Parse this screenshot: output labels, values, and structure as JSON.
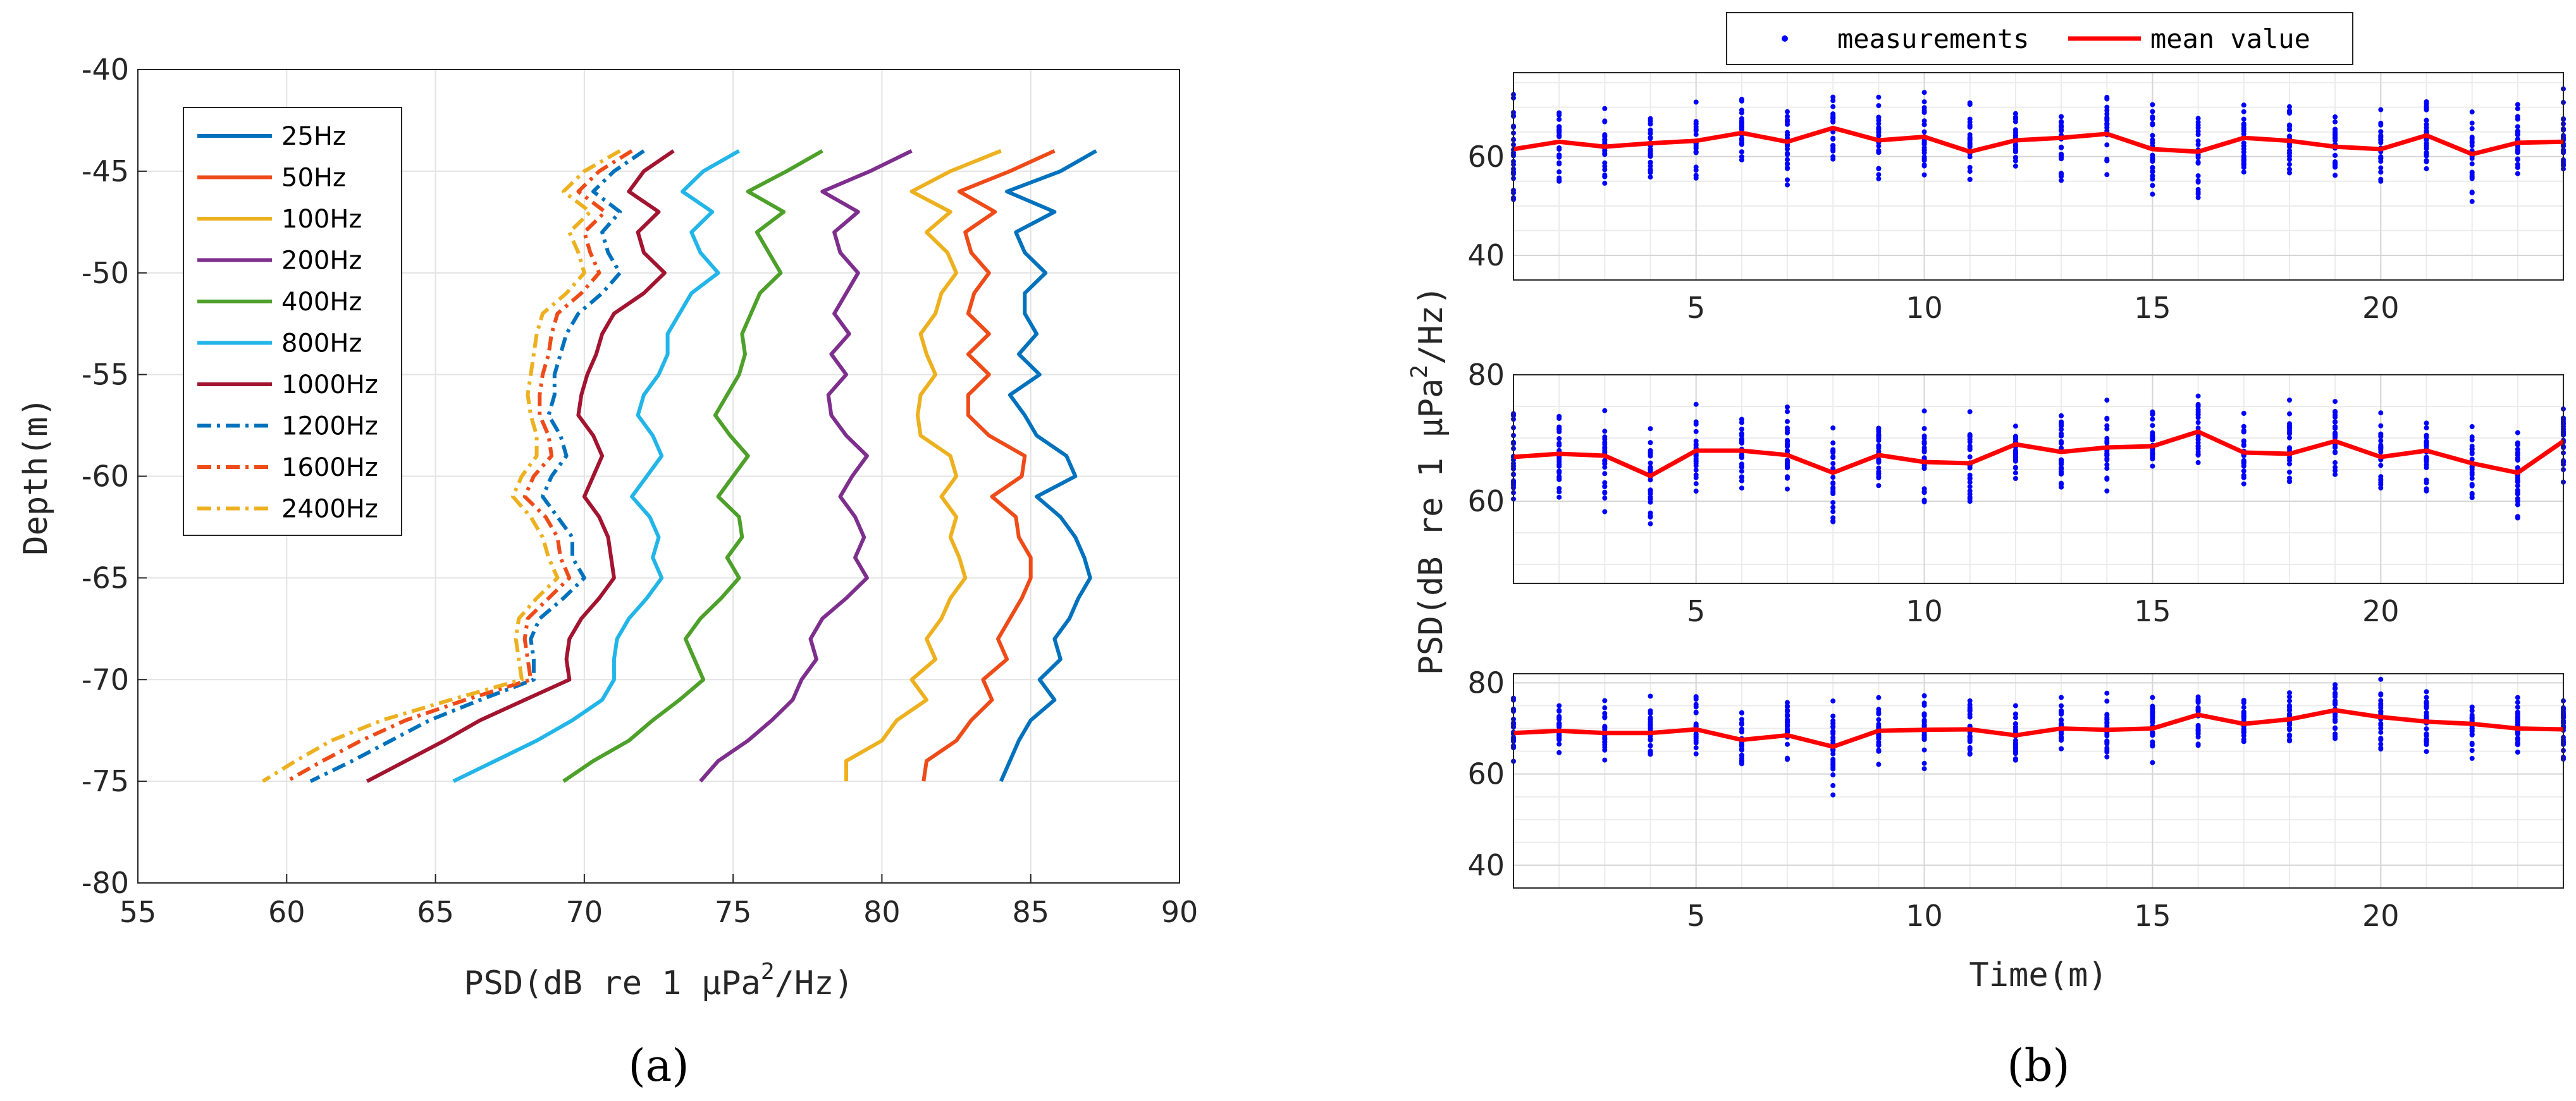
{
  "chart_data": [
    {
      "id": "a",
      "type": "line",
      "caption": "(a)",
      "xlabel": "PSD(dB re 1 μPa",
      "xlabel_sup": "2",
      "xlabel_tail": "/Hz)",
      "ylabel": "Depth(m)",
      "xlim": [
        55,
        90
      ],
      "ylim": [
        -80,
        -40
      ],
      "xticks": [
        55,
        60,
        65,
        70,
        75,
        80,
        85,
        90
      ],
      "yticks": [
        -80,
        -75,
        -70,
        -65,
        -60,
        -55,
        -50,
        -45,
        -40
      ],
      "grid": true,
      "legend_position": "top-left",
      "depths": [
        -44,
        -45,
        -46,
        -47,
        -48,
        -49,
        -50,
        -51,
        -52,
        -53,
        -54,
        -55,
        -56,
        -57,
        -58,
        -59,
        -60,
        -61,
        -62,
        -63,
        -64,
        -65,
        -66,
        -67,
        -68,
        -69,
        -70,
        -71,
        -72,
        -73,
        -74,
        -75
      ],
      "series": [
        {
          "name": "25Hz",
          "color": "#0072BD",
          "dash": "solid",
          "values": [
            87.2,
            86.0,
            84.2,
            85.8,
            84.5,
            84.8,
            85.5,
            84.8,
            84.8,
            85.2,
            84.6,
            85.3,
            84.3,
            84.8,
            85.2,
            86.2,
            86.5,
            85.2,
            86.0,
            86.5,
            86.8,
            87.0,
            86.6,
            86.3,
            85.8,
            86.0,
            85.3,
            85.8,
            85.0,
            84.6,
            84.3,
            84.0
          ]
        },
        {
          "name": "50Hz",
          "color": "#EE4B19",
          "dash": "solid",
          "values": [
            85.8,
            84.3,
            82.6,
            83.8,
            82.8,
            83.0,
            83.6,
            83.1,
            82.9,
            83.6,
            82.9,
            83.6,
            82.9,
            82.9,
            83.6,
            84.8,
            84.7,
            83.7,
            84.5,
            84.6,
            85.0,
            85.0,
            84.7,
            84.3,
            83.9,
            84.2,
            83.4,
            83.7,
            83.0,
            82.5,
            81.5,
            81.4
          ]
        },
        {
          "name": "100Hz",
          "color": "#EDB120",
          "dash": "solid",
          "values": [
            84.0,
            82.3,
            81.0,
            82.3,
            81.5,
            82.2,
            82.5,
            82.0,
            81.8,
            81.3,
            81.5,
            81.8,
            81.3,
            81.2,
            81.3,
            82.3,
            82.5,
            82.0,
            82.5,
            82.3,
            82.6,
            82.8,
            82.3,
            82.0,
            81.5,
            81.8,
            81.0,
            81.5,
            80.5,
            80.0,
            78.8,
            78.8
          ]
        },
        {
          "name": "200Hz",
          "color": "#7E2F8E",
          "dash": "solid",
          "values": [
            81.0,
            79.6,
            78.0,
            79.2,
            78.4,
            78.6,
            79.2,
            78.8,
            78.4,
            78.9,
            78.3,
            78.8,
            78.2,
            78.3,
            78.8,
            79.5,
            79.0,
            78.6,
            79.1,
            79.4,
            79.1,
            79.5,
            78.8,
            78.0,
            77.6,
            77.8,
            77.3,
            77.0,
            76.3,
            75.5,
            74.5,
            73.9
          ]
        },
        {
          "name": "400Hz",
          "color": "#4DA02A",
          "dash": "solid",
          "values": [
            78.0,
            76.8,
            75.5,
            76.7,
            75.8,
            76.2,
            76.6,
            75.9,
            75.6,
            75.3,
            75.4,
            75.2,
            74.8,
            74.4,
            74.9,
            75.5,
            75.0,
            74.5,
            75.2,
            75.3,
            74.8,
            75.2,
            74.6,
            73.9,
            73.4,
            73.7,
            74.0,
            73.2,
            72.3,
            71.5,
            70.3,
            69.3
          ]
        },
        {
          "name": "800Hz",
          "color": "#22B5E8",
          "dash": "solid",
          "values": [
            75.2,
            74.0,
            73.3,
            74.3,
            73.6,
            73.9,
            74.5,
            73.6,
            73.2,
            72.8,
            72.8,
            72.5,
            72.0,
            71.8,
            72.3,
            72.6,
            72.1,
            71.6,
            72.2,
            72.5,
            72.3,
            72.6,
            72.1,
            71.5,
            71.1,
            71.0,
            71.0,
            70.6,
            69.6,
            68.4,
            67.0,
            65.6
          ]
        },
        {
          "name": "1000Hz",
          "color": "#A2142F",
          "dash": "solid",
          "values": [
            73.0,
            72.0,
            71.5,
            72.5,
            71.8,
            72.0,
            72.7,
            72.0,
            71.0,
            70.6,
            70.4,
            70.1,
            69.9,
            69.8,
            70.3,
            70.6,
            70.3,
            70.0,
            70.5,
            70.8,
            70.9,
            71.0,
            70.5,
            69.9,
            69.5,
            69.4,
            69.5,
            68.0,
            66.5,
            65.3,
            64.0,
            62.7
          ]
        },
        {
          "name": "1200Hz",
          "color": "#0072BD",
          "dash": "dashdot",
          "values": [
            72.0,
            71.0,
            70.3,
            71.2,
            70.6,
            70.8,
            71.2,
            70.6,
            69.8,
            69.4,
            69.2,
            69.0,
            69.0,
            68.8,
            69.2,
            69.4,
            68.9,
            68.6,
            69.1,
            69.6,
            69.6,
            70.0,
            69.3,
            68.5,
            68.2,
            68.3,
            68.3,
            66.5,
            64.8,
            63.5,
            62.2,
            60.8
          ]
        },
        {
          "name": "1600Hz",
          "color": "#EE4B19",
          "dash": "dashdot",
          "values": [
            71.6,
            70.5,
            69.8,
            70.7,
            70.0,
            70.2,
            70.5,
            69.9,
            69.1,
            68.9,
            68.8,
            68.6,
            68.5,
            68.5,
            68.8,
            68.9,
            68.3,
            68.0,
            68.7,
            69.1,
            69.2,
            69.5,
            68.8,
            68.1,
            68.0,
            68.1,
            68.2,
            66.0,
            64.0,
            62.5,
            61.2,
            60.0
          ]
        },
        {
          "name": "2400Hz",
          "color": "#EDB120",
          "dash": "dashdot",
          "values": [
            71.2,
            70.0,
            69.3,
            70.2,
            69.5,
            69.8,
            70.0,
            69.4,
            68.6,
            68.4,
            68.3,
            68.2,
            68.1,
            68.2,
            68.4,
            68.4,
            67.9,
            67.6,
            68.2,
            68.6,
            68.8,
            69.1,
            68.4,
            67.8,
            67.7,
            67.8,
            67.9,
            65.5,
            63.2,
            61.5,
            60.3,
            59.2
          ]
        }
      ]
    },
    {
      "id": "b",
      "type": "scatter",
      "caption": "(b)",
      "xlabel": "Time(m)",
      "ylabel": "PSD(dB re 1 μPa",
      "ylabel_sup": "2",
      "ylabel_tail": "/Hz)",
      "legend": {
        "entries": [
          "measurements",
          "mean value"
        ],
        "position": "top"
      },
      "measurement_color": "#0000FF",
      "mean_color": "#FF0000",
      "grid": true,
      "panels": [
        {
          "xlim": [
            1,
            24
          ],
          "ylim": [
            35,
            77
          ],
          "xticks": [
            5,
            10,
            15,
            20
          ],
          "yticks": [
            40,
            60
          ],
          "x": [
            1,
            2,
            3,
            4,
            5,
            6,
            7,
            8,
            9,
            10,
            11,
            12,
            13,
            14,
            15,
            16,
            17,
            18,
            19,
            20,
            21,
            22,
            23,
            24
          ],
          "mean": [
            61.5,
            63.0,
            62.0,
            62.7,
            63.2,
            64.8,
            63.0,
            65.8,
            63.3,
            64.0,
            61.0,
            63.3,
            63.8,
            64.6,
            61.5,
            61.0,
            63.8,
            63.2,
            62.0,
            61.5,
            64.3,
            60.5,
            62.8,
            63.0
          ],
          "spread": [
            16,
            10,
            11,
            9,
            9,
            9,
            9,
            9,
            10,
            10,
            10,
            9,
            9,
            11,
            10,
            11,
            10,
            11,
            9,
            9,
            10,
            11,
            10,
            11
          ]
        },
        {
          "xlim": [
            1,
            24
          ],
          "ylim": [
            47,
            80
          ],
          "xticks": [
            5,
            10,
            15,
            20
          ],
          "yticks": [
            60,
            80
          ],
          "x": [
            1,
            2,
            3,
            4,
            5,
            6,
            7,
            8,
            9,
            10,
            11,
            12,
            13,
            14,
            15,
            16,
            17,
            18,
            19,
            20,
            21,
            22,
            23,
            24
          ],
          "mean": [
            67.0,
            67.5,
            67.2,
            64.0,
            68.0,
            68.0,
            67.3,
            64.5,
            67.3,
            66.2,
            66.0,
            69.0,
            67.8,
            68.5,
            68.7,
            71.0,
            67.7,
            67.5,
            69.5,
            67.0,
            68.0,
            66.0,
            64.5,
            69.5
          ],
          "spread": [
            10,
            8,
            9,
            10,
            8,
            8,
            8,
            10,
            8,
            9,
            9,
            8,
            8,
            10,
            8,
            9,
            8,
            10,
            8,
            8,
            9,
            8,
            9,
            9
          ]
        },
        {
          "xlim": [
            1,
            24
          ],
          "ylim": [
            35,
            82
          ],
          "xticks": [
            5,
            10,
            15,
            20
          ],
          "yticks": [
            40,
            60,
            80
          ],
          "x": [
            1,
            2,
            3,
            4,
            5,
            6,
            7,
            8,
            9,
            10,
            11,
            12,
            13,
            14,
            15,
            16,
            17,
            18,
            19,
            20,
            21,
            22,
            23,
            24
          ],
          "mean": [
            69.0,
            69.5,
            69.0,
            69.0,
            69.8,
            67.5,
            68.5,
            66.0,
            69.5,
            69.7,
            69.8,
            68.5,
            70.0,
            69.7,
            70.0,
            73.0,
            71.0,
            72.0,
            74.0,
            72.5,
            71.5,
            71.0,
            70.0,
            69.8
          ],
          "spread": [
            10,
            9,
            9,
            10,
            9,
            9,
            10,
            11,
            9,
            9,
            10,
            9,
            8,
            9,
            9,
            9,
            8,
            10,
            8,
            9,
            8,
            10,
            8,
            9
          ]
        }
      ]
    }
  ]
}
